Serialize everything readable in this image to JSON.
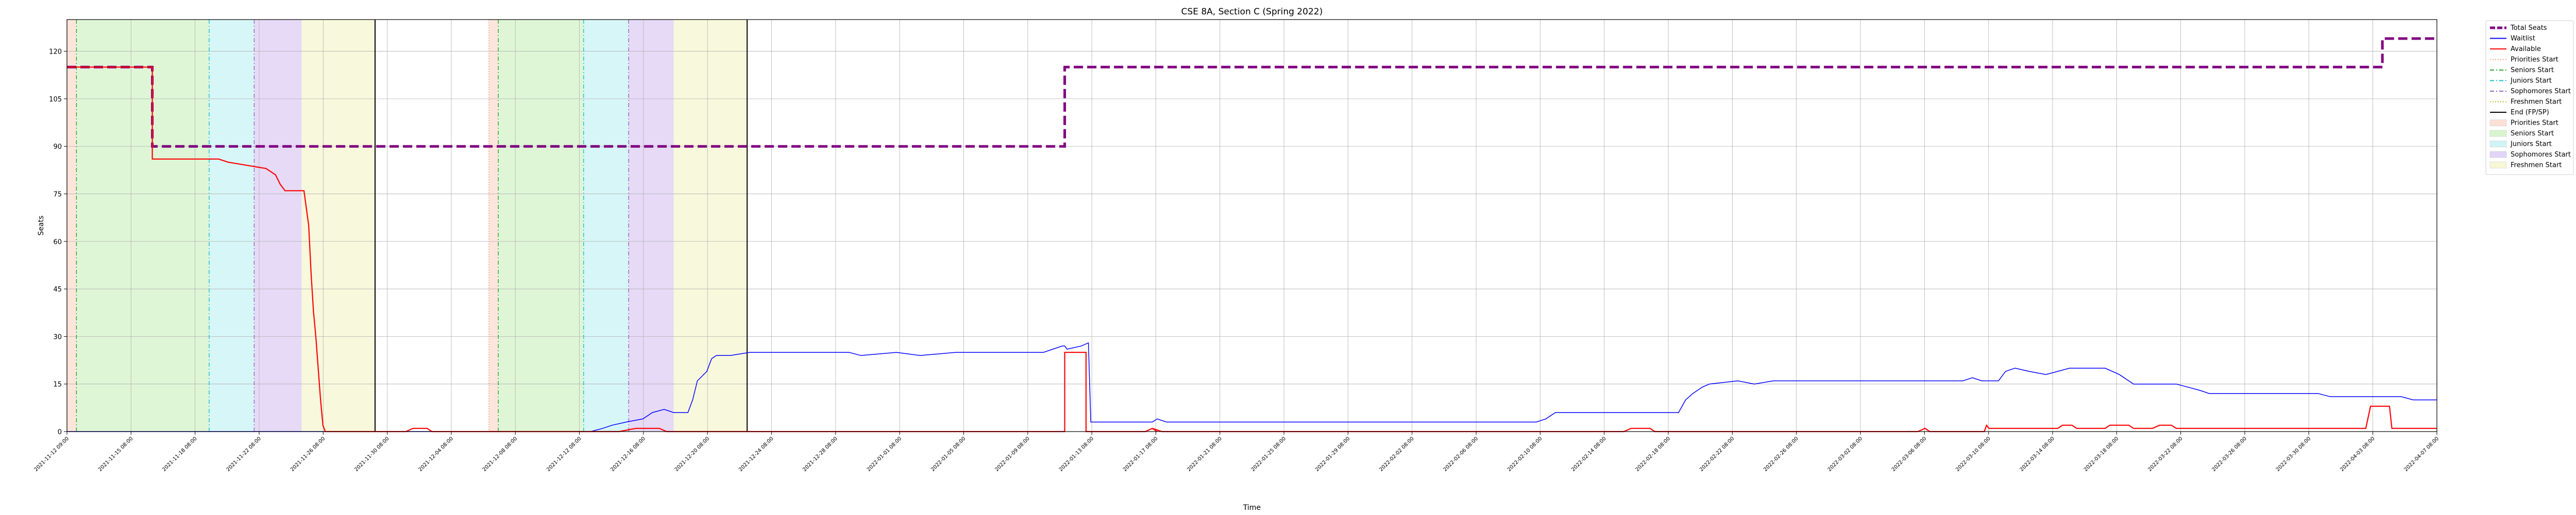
{
  "chart_data": {
    "type": "line",
    "title": "CSE 8A, Section C (Spring 2022)",
    "xlabel": "Time",
    "ylabel": "Seats",
    "ylim": [
      0,
      130
    ],
    "yticks": [
      0,
      15,
      30,
      45,
      60,
      75,
      90,
      105,
      120
    ],
    "grid": true,
    "legend_position": "outside-right",
    "x_range": [
      "2021-11-12 09:00",
      "2022-04-08 17:00"
    ],
    "x_tick_labels": [
      "2021-11-12 09:00",
      "2021-11-15 08:00",
      "2021-11-18 08:00",
      "2021-11-22 08:00",
      "2021-11-26 08:00",
      "2021-11-30 08:00",
      "2021-12-04 08:00",
      "2021-12-08 08:00",
      "2021-12-12 08:00",
      "2021-12-16 08:00",
      "2021-12-20 08:00",
      "2021-12-24 08:00",
      "2021-12-28 08:00",
      "2022-01-01 08:00",
      "2022-01-05 08:00",
      "2022-01-09 08:00",
      "2022-01-13 08:00",
      "2022-01-17 08:00",
      "2022-01-21 08:00",
      "2022-01-25 08:00",
      "2022-01-29 08:00",
      "2022-02-02 08:00",
      "2022-02-06 08:00",
      "2022-02-10 08:00",
      "2022-02-14 08:00",
      "2022-02-18 08:00",
      "2022-02-22 08:00",
      "2022-02-26 08:00",
      "2022-03-02 08:00",
      "2022-03-06 08:00",
      "2022-03-10 08:00",
      "2022-03-14 08:00",
      "2022-03-18 08:00",
      "2022-03-22 08:00",
      "2022-03-26 08:00",
      "2022-03-30 08:00",
      "2022-04-03 08:00",
      "2022-04-07 08:00"
    ],
    "legend": [
      {
        "label": "Total Seats",
        "kind": "line",
        "color": "#800080",
        "style": "dashed-thick"
      },
      {
        "label": "Waitlist",
        "kind": "line",
        "color": "#0000ff",
        "style": "solid"
      },
      {
        "label": "Available",
        "kind": "line",
        "color": "#ff0000",
        "style": "solid"
      },
      {
        "label": "Priorities Start",
        "kind": "line",
        "color": "#f4a582",
        "style": "dotted"
      },
      {
        "label": "Seniors Start",
        "kind": "line",
        "color": "#2ca02c",
        "style": "dashdot"
      },
      {
        "label": "Juniors Start",
        "kind": "line",
        "color": "#17becf",
        "style": "dashdot"
      },
      {
        "label": "Sophomores Start",
        "kind": "line",
        "color": "#9467bd",
        "style": "dashdot"
      },
      {
        "label": "Freshmen Start",
        "kind": "line",
        "color": "#bcbd22",
        "style": "dotted"
      },
      {
        "label": "End (FP/SP)",
        "kind": "line",
        "color": "#000000",
        "style": "solid"
      },
      {
        "label": "Priorities Start",
        "kind": "patch",
        "color": "#fbe0d5"
      },
      {
        "label": "Seniors Start",
        "kind": "patch",
        "color": "#d8f5cf"
      },
      {
        "label": "Juniors Start",
        "kind": "patch",
        "color": "#d0f4f6"
      },
      {
        "label": "Sophomores Start",
        "kind": "patch",
        "color": "#e2d4f6"
      },
      {
        "label": "Freshmen Start",
        "kind": "patch",
        "color": "#f7f7d6"
      }
    ],
    "period_bands": [
      {
        "label": "Priorities Start",
        "color": "#fbe0d5",
        "x0": 0.0,
        "x1": 0.004
      },
      {
        "label": "Seniors Start",
        "color": "#d8f5cf",
        "x0": 0.004,
        "x1": 0.06
      },
      {
        "label": "Juniors Start",
        "color": "#d0f4f6",
        "x0": 0.06,
        "x1": 0.079
      },
      {
        "label": "Sophomores Start",
        "color": "#e2d4f6",
        "x0": 0.079,
        "x1": 0.099
      },
      {
        "label": "Freshmen Start",
        "color": "#f7f7d6",
        "x0": 0.099,
        "x1": 0.13
      },
      {
        "label": "Priorities Start",
        "color": "#fbe0d5",
        "x0": 0.178,
        "x1": 0.182
      },
      {
        "label": "Seniors Start",
        "color": "#d8f5cf",
        "x0": 0.182,
        "x1": 0.218
      },
      {
        "label": "Juniors Start",
        "color": "#d0f4f6",
        "x0": 0.218,
        "x1": 0.237
      },
      {
        "label": "Sophomores Start",
        "color": "#e2d4f6",
        "x0": 0.237,
        "x1": 0.256
      },
      {
        "label": "Freshmen Start",
        "color": "#f7f7d6",
        "x0": 0.256,
        "x1": 0.287
      }
    ],
    "period_lines": [
      {
        "label": "Priorities Start",
        "color": "#f4a582",
        "x": 0.0
      },
      {
        "label": "Seniors Start",
        "color": "#2ca02c",
        "x": 0.004
      },
      {
        "label": "Juniors Start",
        "color": "#17becf",
        "x": 0.06
      },
      {
        "label": "Sophomores Start",
        "color": "#9467bd",
        "x": 0.079
      },
      {
        "label": "End (FP/SP)",
        "color": "#000000",
        "x": 0.13
      },
      {
        "label": "Priorities Start",
        "color": "#f4a582",
        "x": 0.178
      },
      {
        "label": "Seniors Start",
        "color": "#2ca02c",
        "x": 0.182
      },
      {
        "label": "Juniors Start",
        "color": "#17becf",
        "x": 0.218
      },
      {
        "label": "Sophomores Start",
        "color": "#9467bd",
        "x": 0.237
      },
      {
        "label": "End (FP/SP)",
        "color": "#000000",
        "x": 0.287
      }
    ],
    "series": [
      {
        "name": "Total Seats",
        "color": "#800080",
        "points": [
          [
            0.0,
            115
          ],
          [
            0.036,
            115
          ],
          [
            0.036,
            90
          ],
          [
            0.421,
            90
          ],
          [
            0.421,
            115
          ],
          [
            0.977,
            115
          ],
          [
            0.977,
            124
          ],
          [
            1.0,
            124
          ]
        ]
      },
      {
        "name": "Waitlist",
        "color": "#0000ff",
        "points": [
          [
            0.0,
            0
          ],
          [
            0.221,
            0
          ],
          [
            0.226,
            1
          ],
          [
            0.23,
            2
          ],
          [
            0.236,
            3
          ],
          [
            0.243,
            4
          ],
          [
            0.247,
            6
          ],
          [
            0.252,
            7
          ],
          [
            0.256,
            6
          ],
          [
            0.262,
            6
          ],
          [
            0.264,
            10
          ],
          [
            0.266,
            16
          ],
          [
            0.27,
            19
          ],
          [
            0.272,
            23
          ],
          [
            0.274,
            24
          ],
          [
            0.28,
            24
          ],
          [
            0.288,
            25
          ],
          [
            0.33,
            25
          ],
          [
            0.335,
            24
          ],
          [
            0.35,
            25
          ],
          [
            0.36,
            24
          ],
          [
            0.375,
            25
          ],
          [
            0.4,
            25
          ],
          [
            0.412,
            25
          ],
          [
            0.416,
            26
          ],
          [
            0.42,
            27
          ],
          [
            0.421,
            27
          ],
          [
            0.422,
            26
          ],
          [
            0.428,
            27
          ],
          [
            0.431,
            28
          ],
          [
            0.432,
            3
          ],
          [
            0.458,
            3
          ],
          [
            0.46,
            4
          ],
          [
            0.464,
            3
          ],
          [
            0.6,
            3
          ],
          [
            0.62,
            3
          ],
          [
            0.624,
            4
          ],
          [
            0.628,
            6
          ],
          [
            0.68,
            6
          ],
          [
            0.683,
            10
          ],
          [
            0.686,
            12
          ],
          [
            0.69,
            14
          ],
          [
            0.693,
            15
          ],
          [
            0.705,
            16
          ],
          [
            0.712,
            15
          ],
          [
            0.72,
            16
          ],
          [
            0.8,
            16
          ],
          [
            0.804,
            17
          ],
          [
            0.808,
            16
          ],
          [
            0.815,
            16
          ],
          [
            0.818,
            19
          ],
          [
            0.822,
            20
          ],
          [
            0.828,
            19
          ],
          [
            0.835,
            18
          ],
          [
            0.84,
            19
          ],
          [
            0.845,
            20
          ],
          [
            0.86,
            20
          ],
          [
            0.866,
            18
          ],
          [
            0.872,
            15
          ],
          [
            0.89,
            15
          ],
          [
            0.895,
            14
          ],
          [
            0.9,
            13
          ],
          [
            0.904,
            12
          ],
          [
            0.95,
            12
          ],
          [
            0.955,
            11
          ],
          [
            0.967,
            11
          ],
          [
            0.97,
            11
          ],
          [
            0.985,
            11
          ],
          [
            0.99,
            10
          ],
          [
            0.997,
            10
          ],
          [
            1.0,
            10
          ]
        ]
      },
      {
        "name": "Available",
        "color": "#ff0000",
        "points": [
          [
            0.0,
            115
          ],
          [
            0.036,
            115
          ],
          [
            0.036,
            86
          ],
          [
            0.052,
            86
          ],
          [
            0.064,
            86
          ],
          [
            0.068,
            85
          ],
          [
            0.076,
            84
          ],
          [
            0.084,
            83
          ],
          [
            0.088,
            81
          ],
          [
            0.09,
            78
          ],
          [
            0.092,
            76
          ],
          [
            0.098,
            76
          ],
          [
            0.1,
            76
          ],
          [
            0.102,
            65
          ],
          [
            0.103,
            50
          ],
          [
            0.104,
            38
          ],
          [
            0.105,
            30
          ],
          [
            0.106,
            20
          ],
          [
            0.107,
            10
          ],
          [
            0.108,
            2
          ],
          [
            0.109,
            0
          ],
          [
            0.143,
            0
          ],
          [
            0.146,
            1
          ],
          [
            0.152,
            1
          ],
          [
            0.154,
            0
          ],
          [
            0.233,
            0
          ],
          [
            0.24,
            1
          ],
          [
            0.25,
            1
          ],
          [
            0.253,
            0
          ],
          [
            0.421,
            0
          ],
          [
            0.421,
            25
          ],
          [
            0.43,
            25
          ],
          [
            0.43,
            0
          ],
          [
            0.455,
            0
          ],
          [
            0.458,
            1
          ],
          [
            0.46,
            0
          ],
          [
            0.46,
            0
          ],
          [
            0.458,
            1
          ],
          [
            0.462,
            0
          ],
          [
            0.464,
            0
          ],
          [
            0.657,
            0
          ],
          [
            0.66,
            1
          ],
          [
            0.668,
            1
          ],
          [
            0.67,
            0
          ],
          [
            0.781,
            0
          ],
          [
            0.784,
            1
          ],
          [
            0.786,
            0
          ],
          [
            0.809,
            0
          ],
          [
            0.81,
            2
          ],
          [
            0.811,
            1
          ],
          [
            0.84,
            1
          ],
          [
            0.842,
            2
          ],
          [
            0.846,
            2
          ],
          [
            0.848,
            1
          ],
          [
            0.86,
            1
          ],
          [
            0.862,
            2
          ],
          [
            0.87,
            2
          ],
          [
            0.872,
            1
          ],
          [
            0.88,
            1
          ],
          [
            0.883,
            2
          ],
          [
            0.888,
            2
          ],
          [
            0.89,
            1
          ],
          [
            0.97,
            1
          ],
          [
            0.972,
            8
          ],
          [
            0.98,
            8
          ],
          [
            0.981,
            1
          ],
          [
            1.0,
            1
          ]
        ]
      }
    ]
  }
}
